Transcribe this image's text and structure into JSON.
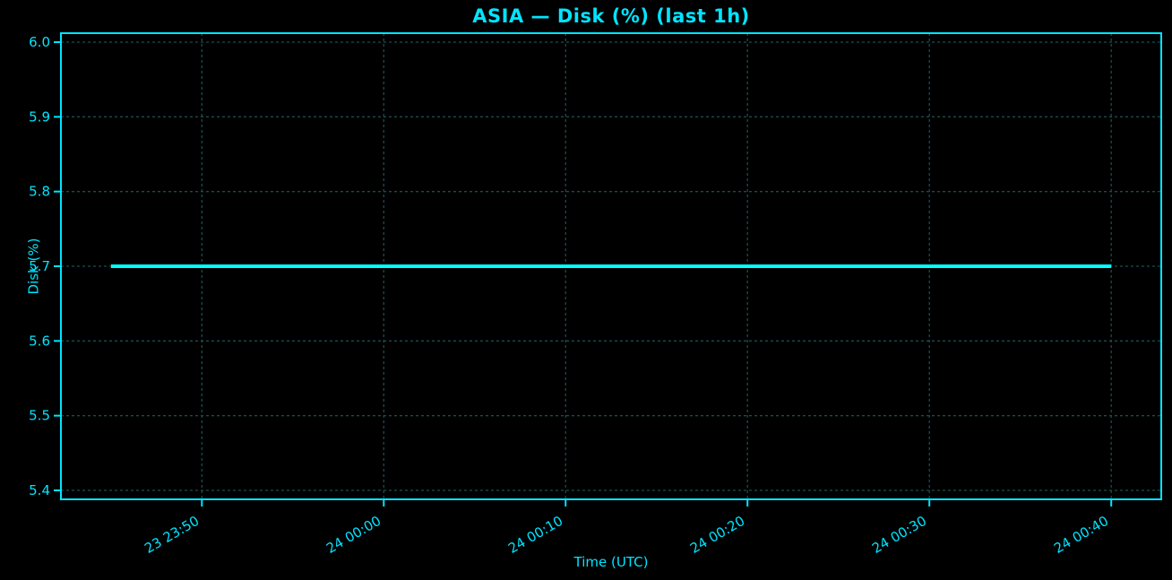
{
  "window": {
    "title": "ASIA — Disk (%) (last 1h)"
  },
  "colors": {
    "background": "#000000",
    "accent": "#00e5ff",
    "line": "#00ffff",
    "grid": "#1c4b52",
    "spine": "#00e5ff"
  },
  "chart_data": {
    "type": "line",
    "title": "ASIA — Disk (%) (last 1h)",
    "xlabel": "Time (UTC)",
    "ylabel": "Disk (%)",
    "x": [
      "23 23:45",
      "23 23:50",
      "23 23:55",
      "24 00:00",
      "24 00:05",
      "24 00:10",
      "24 00:15",
      "24 00:20",
      "24 00:25",
      "24 00:30",
      "24 00:35",
      "24 00:40"
    ],
    "values": [
      5.7,
      5.7,
      5.7,
      5.7,
      5.7,
      5.7,
      5.7,
      5.7,
      5.7,
      5.7,
      5.7,
      5.7
    ],
    "xticks": [
      "23 23:50",
      "24 00:00",
      "24 00:10",
      "24 00:20",
      "24 00:30",
      "24 00:40"
    ],
    "yticks": [
      "5.4",
      "5.5",
      "5.6",
      "5.7",
      "5.8",
      "5.9",
      "6.0"
    ],
    "ylim": [
      5.388,
      6.012
    ],
    "x_pad_fraction": 0.05,
    "grid": true,
    "legend": "none",
    "line_width": 4,
    "xtick_rotation_deg": 30
  }
}
